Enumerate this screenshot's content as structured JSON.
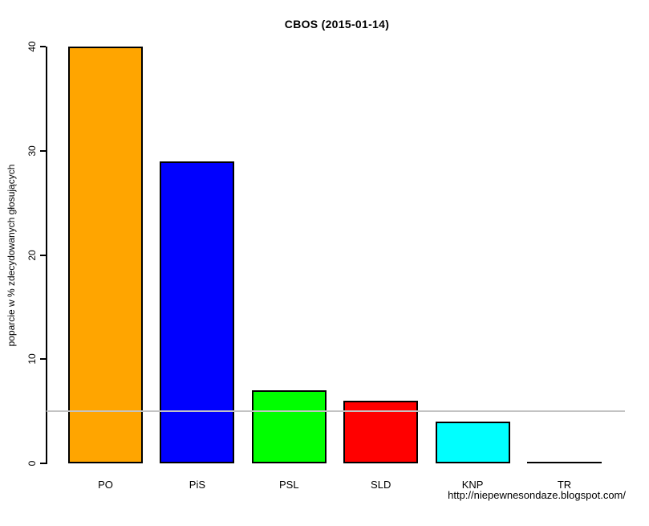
{
  "title": "CBOS (2015-01-14)",
  "watermark_url": "http://niepewnesondaze.blogspot.com/",
  "chart_data": {
    "type": "bar",
    "title": "CBOS (2015-01-14)",
    "categories": [
      "PO",
      "PiS",
      "PSL",
      "SLD",
      "KNP",
      "TR"
    ],
    "values": [
      40,
      29,
      7,
      6,
      4,
      0
    ],
    "bar_colors": [
      "#FFA500",
      "#0000FF",
      "#00FF00",
      "#FF0000",
      "#00FFFF",
      "#FFFFFF"
    ],
    "bar_border_color": "#000000",
    "xlabel": "",
    "ylabel": "poparcie w % zdecydowanych głosujących",
    "ylim": [
      0,
      40
    ],
    "yticks": [
      0,
      10,
      20,
      30,
      40
    ],
    "threshold_line": {
      "value": 5,
      "color": "#c3c3c3"
    },
    "grid": false,
    "legend": "none",
    "annotation": "http://niepewnesondaze.blogspot.com/"
  }
}
